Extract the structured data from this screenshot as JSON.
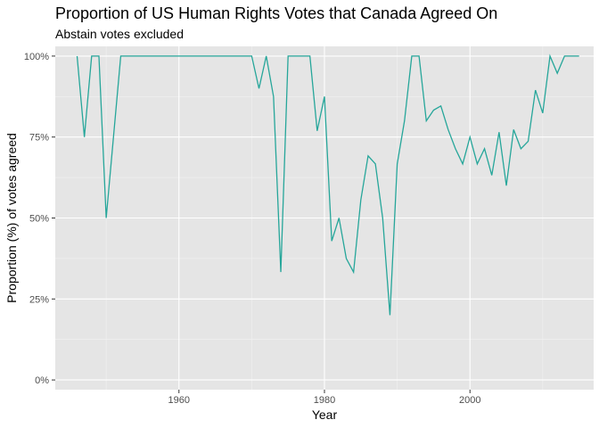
{
  "chart_data": {
    "type": "line",
    "title": "Proportion of US Human Rights Votes that Canada Agreed On",
    "subtitle": "Abstain votes excluded",
    "xlabel": "Year",
    "ylabel": "Proportion (%) of votes agreed",
    "xlim": [
      1943,
      2017
    ],
    "ylim": [
      -3,
      103
    ],
    "x_ticks": [
      1960,
      1980,
      2000
    ],
    "y_ticks": [
      0,
      25,
      50,
      75,
      100
    ],
    "y_tick_labels": [
      "0%",
      "25%",
      "50%",
      "75%",
      "100%"
    ],
    "grid": true,
    "line_color": "#26a69a",
    "panel_background": "#e5e5e5",
    "series": [
      {
        "x": [
          1946,
          1947,
          1948,
          1949,
          1950,
          1951,
          1952,
          1953,
          1954,
          1955,
          1956,
          1957,
          1958,
          1959,
          1960,
          1961,
          1962,
          1963,
          1964,
          1965,
          1966,
          1967,
          1968,
          1969,
          1970,
          1971,
          1972,
          1973,
          1974,
          1975,
          1976,
          1977,
          1978,
          1979,
          1980,
          1981,
          1982,
          1983,
          1984,
          1985,
          1986,
          1987,
          1988,
          1989,
          1990,
          1991,
          1992,
          1993,
          1994,
          1995,
          1996,
          1997,
          1998,
          1999,
          2000,
          2001,
          2002,
          2003,
          2004,
          2005,
          2006,
          2007,
          2008,
          2009,
          2010,
          2011,
          2012,
          2013,
          2014,
          2015
        ],
        "y": [
          100,
          75,
          100,
          100,
          50,
          75,
          100,
          100,
          100,
          100,
          100,
          100,
          100,
          100,
          100,
          100,
          100,
          100,
          100,
          100,
          100,
          100,
          100,
          100,
          100,
          90,
          100,
          87.5,
          33.3,
          100,
          100,
          100,
          100,
          76.9,
          87.5,
          42.9,
          50,
          37.5,
          33.3,
          55.6,
          69.2,
          66.7,
          50,
          20,
          66.7,
          80,
          100,
          100,
          80,
          83.3,
          84.6,
          77.3,
          71.4,
          66.7,
          75,
          66.7,
          71.4,
          63.2,
          76.5,
          60,
          77.3,
          71.4,
          73.7,
          89.5,
          82.4,
          100,
          94.7,
          100,
          100,
          100
        ]
      }
    ]
  }
}
